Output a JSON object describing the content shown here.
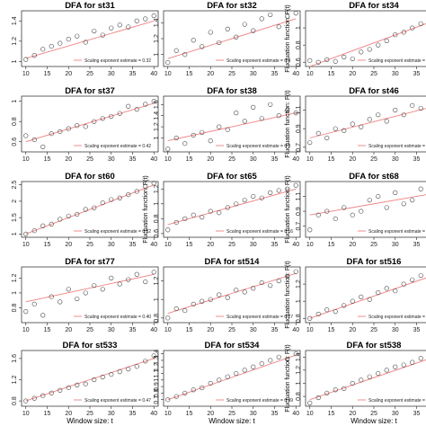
{
  "figure": {
    "title_prefix": "DFA for",
    "legend_text": "Scaling exponent estimate = ",
    "xlabel": "Window size: t",
    "ylabel": "Fluctuation function: F(t)",
    "colors": {
      "fit_line": "#f08080",
      "points": "#444444",
      "axis": "#222222"
    }
  },
  "chart_data": [
    {
      "type": "scatter",
      "title": "DFA for st31",
      "panel": {
        "row": 0,
        "col": 0
      },
      "xlabel": "",
      "ylabel": "",
      "xlim": [
        9,
        41
      ],
      "ylim": [
        0.95,
        1.5
      ],
      "xticks": [
        10,
        15,
        20,
        25,
        30,
        35,
        40
      ],
      "yticks": [
        1.0,
        1.2,
        1.4
      ],
      "x": [
        10,
        12,
        14,
        16,
        18,
        20,
        22,
        24,
        26,
        28,
        30,
        32,
        34,
        36,
        38,
        40
      ],
      "y": [
        1.02,
        1.06,
        1.12,
        1.15,
        1.18,
        1.22,
        1.25,
        1.19,
        1.3,
        1.26,
        1.33,
        1.36,
        1.34,
        1.4,
        1.42,
        1.45
      ],
      "fit": {
        "x": [
          10,
          40
        ],
        "y": [
          1.03,
          1.4
        ]
      },
      "legend_value": "0.32"
    },
    {
      "type": "scatter",
      "title": "DFA for st32",
      "panel": {
        "row": 0,
        "col": 1
      },
      "xlabel": "",
      "ylabel": "",
      "xlim": [
        9,
        41
      ],
      "ylim": [
        0.85,
        1.55
      ],
      "xticks": [
        10,
        15,
        20,
        25,
        30,
        35,
        40
      ],
      "yticks": [
        1.0,
        1.2,
        1.4
      ],
      "x": [
        10,
        12,
        14,
        16,
        18,
        20,
        22,
        24,
        26,
        28,
        30,
        32,
        34,
        36,
        38,
        40
      ],
      "y": [
        0.9,
        1.05,
        1.0,
        1.18,
        1.1,
        1.28,
        1.15,
        1.32,
        1.22,
        1.38,
        1.3,
        1.45,
        1.5,
        1.35,
        1.48,
        1.52
      ],
      "fit": {
        "x": [
          10,
          40
        ],
        "y": [
          0.95,
          1.45
        ]
      },
      "legend_value": "0.4"
    },
    {
      "type": "scatter",
      "title": "DFA for st34",
      "panel": {
        "row": 0,
        "col": 2
      },
      "xlabel": "",
      "ylabel": "Fluctuation function: F(t)",
      "xlim": [
        9,
        41
      ],
      "ylim": [
        0.55,
        1.2
      ],
      "xticks": [
        10,
        15,
        20,
        25,
        30,
        35,
        40
      ],
      "yticks": [
        0.6,
        0.8,
        1.0
      ],
      "x": [
        10,
        12,
        14,
        16,
        18,
        20,
        22,
        24,
        26,
        28,
        30,
        32,
        34,
        36,
        38,
        40
      ],
      "y": [
        0.62,
        0.6,
        0.63,
        0.61,
        0.66,
        0.64,
        0.72,
        0.75,
        0.8,
        0.85,
        0.92,
        0.95,
        1.0,
        1.05,
        1.08,
        1.12
      ],
      "fit": {
        "x": [
          10,
          40
        ],
        "y": [
          0.55,
          1.1
        ]
      },
      "legend_value": "0.4"
    },
    {
      "type": "scatter",
      "title": "DFA for st37",
      "panel": {
        "row": 1,
        "col": 0
      },
      "xlabel": "",
      "ylabel": "",
      "xlim": [
        9,
        41
      ],
      "ylim": [
        0.5,
        1.05
      ],
      "xticks": [
        10,
        15,
        20,
        25,
        30,
        35,
        40
      ],
      "yticks": [
        0.6,
        0.8,
        1.0
      ],
      "x": [
        10,
        12,
        14,
        16,
        18,
        20,
        22,
        24,
        26,
        28,
        30,
        32,
        34,
        36,
        38,
        40
      ],
      "y": [
        0.66,
        0.62,
        0.55,
        0.68,
        0.7,
        0.73,
        0.76,
        0.75,
        0.8,
        0.83,
        0.85,
        0.88,
        0.95,
        0.92,
        0.97,
        1.0
      ],
      "fit": {
        "x": [
          10,
          40
        ],
        "y": [
          0.6,
          0.98
        ]
      },
      "legend_value": "0.42"
    },
    {
      "type": "scatter",
      "title": "DFA for st38",
      "panel": {
        "row": 1,
        "col": 1
      },
      "xlabel": "",
      "ylabel": "",
      "xlim": [
        9,
        41
      ],
      "ylim": [
        0.75,
        1.75
      ],
      "xticks": [
        10,
        15,
        20,
        25,
        30,
        35,
        40
      ],
      "yticks": [
        1.0,
        1.2,
        1.4,
        1.6
      ],
      "x": [
        10,
        12,
        14,
        16,
        18,
        20,
        22,
        24,
        26,
        28,
        30,
        32,
        34,
        36,
        38,
        40
      ],
      "y": [
        0.8,
        1.0,
        0.9,
        1.05,
        1.1,
        0.95,
        1.2,
        1.15,
        1.45,
        1.3,
        1.55,
        1.35,
        1.6,
        1.4,
        1.5,
        1.45
      ],
      "fit": {
        "x": [
          10,
          40
        ],
        "y": [
          0.95,
          1.45
        ]
      },
      "legend_value": "0.3"
    },
    {
      "type": "scatter",
      "title": "DFA for st46",
      "panel": {
        "row": 1,
        "col": 2
      },
      "xlabel": "",
      "ylabel": "Fluctuation function: F(t)",
      "xlim": [
        9,
        41
      ],
      "ylim": [
        0.65,
        1.25
      ],
      "xticks": [
        10,
        15,
        20,
        25,
        30,
        35,
        40
      ],
      "yticks": [
        0.7,
        0.9,
        1.1
      ],
      "x": [
        10,
        12,
        14,
        16,
        18,
        20,
        22,
        24,
        26,
        28,
        30,
        32,
        34,
        36,
        38,
        40
      ],
      "y": [
        0.75,
        0.85,
        0.8,
        0.9,
        0.88,
        0.95,
        0.92,
        1.0,
        1.05,
        0.98,
        1.1,
        1.05,
        1.15,
        1.12,
        1.18,
        1.2
      ],
      "fit": {
        "x": [
          10,
          40
        ],
        "y": [
          0.8,
          1.15
        ]
      },
      "legend_value": "0.2"
    },
    {
      "type": "scatter",
      "title": "DFA for st60",
      "panel": {
        "row": 2,
        "col": 0
      },
      "xlabel": "",
      "ylabel": "",
      "xlim": [
        9,
        41
      ],
      "ylim": [
        0.9,
        2.6
      ],
      "xticks": [
        10,
        15,
        20,
        25,
        30,
        35,
        40
      ],
      "yticks": [
        1.0,
        1.5,
        2.0,
        2.5
      ],
      "x": [
        10,
        12,
        14,
        16,
        18,
        20,
        22,
        24,
        26,
        28,
        30,
        32,
        34,
        36,
        38,
        40
      ],
      "y": [
        1.0,
        1.1,
        1.25,
        1.3,
        1.45,
        1.55,
        1.6,
        1.75,
        1.8,
        1.95,
        2.05,
        2.1,
        2.2,
        2.3,
        2.45,
        2.55
      ],
      "fit": {
        "x": [
          10,
          40
        ],
        "y": [
          1.0,
          2.5
        ]
      },
      "legend_value": "0.82"
    },
    {
      "type": "scatter",
      "title": "DFA for st65",
      "panel": {
        "row": 2,
        "col": 1
      },
      "xlabel": "",
      "ylabel": "Fluctuation function: F(t)",
      "xlim": [
        9,
        41
      ],
      "ylim": [
        0.55,
        1.3
      ],
      "xticks": [
        10,
        15,
        20,
        25,
        30,
        35,
        40
      ],
      "yticks": [
        0.6,
        0.8,
        1.0,
        1.2
      ],
      "x": [
        10,
        12,
        14,
        16,
        18,
        20,
        22,
        24,
        26,
        28,
        30,
        32,
        34,
        36,
        38,
        40
      ],
      "y": [
        0.65,
        0.75,
        0.8,
        0.85,
        0.82,
        0.9,
        0.88,
        0.95,
        1.0,
        1.05,
        1.1,
        1.08,
        1.15,
        1.18,
        1.2,
        1.25
      ],
      "fit": {
        "x": [
          10,
          40
        ],
        "y": [
          0.72,
          1.2
        ]
      },
      "legend_value": "0.16"
    },
    {
      "type": "scatter",
      "title": "DFA for st68",
      "panel": {
        "row": 2,
        "col": 2
      },
      "xlabel": "",
      "ylabel": "Fluctuation function: F(t)",
      "xlim": [
        9,
        41
      ],
      "ylim": [
        0.55,
        1.3
      ],
      "xticks": [
        10,
        15,
        20,
        25,
        30,
        35,
        40
      ],
      "yticks": [
        0.7,
        0.9,
        1.1
      ],
      "x": [
        10,
        12,
        14,
        16,
        18,
        20,
        22,
        24,
        26,
        28,
        30,
        32,
        34,
        36,
        38,
        40
      ],
      "y": [
        0.65,
        0.85,
        0.9,
        0.8,
        0.95,
        0.85,
        0.9,
        1.05,
        1.1,
        0.95,
        1.15,
        1.0,
        1.05,
        1.2,
        1.1,
        1.18
      ],
      "fit": {
        "x": [
          10,
          40
        ],
        "y": [
          0.85,
          1.15
        ]
      },
      "legend_value": ""
    },
    {
      "type": "scatter",
      "title": "DFA for st77",
      "panel": {
        "row": 3,
        "col": 0
      },
      "xlabel": "",
      "ylabel": "",
      "xlim": [
        9,
        41
      ],
      "ylim": [
        0.6,
        1.35
      ],
      "xticks": [
        10,
        15,
        20,
        25,
        30,
        35,
        40
      ],
      "yticks": [
        0.8,
        1.0,
        1.2
      ],
      "x": [
        10,
        12,
        14,
        16,
        18,
        20,
        22,
        24,
        26,
        28,
        30,
        32,
        34,
        36,
        38,
        40
      ],
      "y": [
        0.75,
        0.85,
        0.7,
        0.95,
        0.88,
        1.05,
        0.92,
        1.0,
        1.1,
        1.05,
        1.2,
        1.12,
        1.18,
        1.25,
        1.15,
        1.28
      ],
      "fit": {
        "x": [
          10,
          40
        ],
        "y": [
          0.88,
          1.25
        ]
      },
      "legend_value": "0.40"
    },
    {
      "type": "scatter",
      "title": "DFA for st514",
      "panel": {
        "row": 3,
        "col": 1
      },
      "xlabel": "",
      "ylabel": "",
      "xlim": [
        9,
        41
      ],
      "ylim": [
        0.75,
        1.35
      ],
      "xticks": [
        10,
        15,
        20,
        25,
        30,
        35,
        40
      ],
      "yticks": [
        0.8,
        1.0,
        1.2
      ],
      "x": [
        10,
        12,
        14,
        16,
        18,
        20,
        22,
        24,
        26,
        28,
        30,
        32,
        34,
        36,
        38,
        40
      ],
      "y": [
        0.8,
        0.9,
        0.88,
        0.95,
        0.98,
        1.0,
        1.05,
        1.02,
        1.1,
        1.08,
        1.12,
        1.18,
        1.15,
        1.2,
        1.25,
        1.3
      ],
      "fit": {
        "x": [
          10,
          40
        ],
        "y": [
          0.85,
          1.28
        ]
      },
      "legend_value": "0.27"
    },
    {
      "type": "scatter",
      "title": "DFA for st516",
      "panel": {
        "row": 3,
        "col": 2
      },
      "xlabel": "",
      "ylabel": "Fluctuation function: F(t)",
      "xlim": [
        9,
        41
      ],
      "ylim": [
        0.75,
        1.4
      ],
      "xticks": [
        10,
        15,
        20,
        25,
        30,
        35,
        40
      ],
      "yticks": [
        0.8,
        1.0,
        1.2
      ],
      "x": [
        10,
        12,
        14,
        16,
        18,
        20,
        22,
        24,
        26,
        28,
        30,
        32,
        34,
        36,
        38,
        40
      ],
      "y": [
        0.8,
        0.85,
        0.9,
        0.88,
        0.95,
        1.0,
        1.05,
        1.02,
        1.1,
        1.15,
        1.12,
        1.2,
        1.25,
        1.3,
        1.28,
        1.35
      ],
      "fit": {
        "x": [
          10,
          40
        ],
        "y": [
          0.8,
          1.32
        ]
      },
      "legend_value": ""
    },
    {
      "type": "scatter",
      "title": "DFA for st533",
      "panel": {
        "row": 4,
        "col": 0
      },
      "xlabel": "Window size: t",
      "ylabel": "",
      "xlim": [
        9,
        41
      ],
      "ylim": [
        0.7,
        1.75
      ],
      "xticks": [
        10,
        15,
        20,
        25,
        30,
        35,
        40
      ],
      "yticks": [
        0.8,
        1.2,
        1.6
      ],
      "x": [
        10,
        12,
        14,
        16,
        18,
        20,
        22,
        24,
        26,
        28,
        30,
        32,
        34,
        36,
        38,
        40
      ],
      "y": [
        0.8,
        0.85,
        0.9,
        0.95,
        1.0,
        1.05,
        1.1,
        1.12,
        1.2,
        1.25,
        1.3,
        1.35,
        1.4,
        1.45,
        1.55,
        1.65
      ],
      "fit": {
        "x": [
          10,
          40
        ],
        "y": [
          0.8,
          1.6
        ]
      },
      "legend_value": "0.47"
    },
    {
      "type": "scatter",
      "title": "DFA for st534",
      "panel": {
        "row": 4,
        "col": 1
      },
      "xlabel": "Window size: t",
      "ylabel": "",
      "xlim": [
        9,
        41
      ],
      "ylim": [
        0.6,
        1.45
      ],
      "xticks": [
        10,
        15,
        20,
        25,
        30,
        35,
        40
      ],
      "yticks": [
        0.7,
        0.8,
        0.9,
        1.0,
        1.1,
        1.2,
        1.3,
        1.4
      ],
      "x": [
        10,
        12,
        14,
        16,
        18,
        20,
        22,
        24,
        26,
        28,
        30,
        32,
        34,
        36,
        38,
        40
      ],
      "y": [
        0.7,
        0.75,
        0.8,
        0.85,
        0.88,
        0.95,
        1.0,
        1.05,
        1.1,
        1.15,
        1.2,
        1.25,
        1.3,
        1.35,
        1.32,
        1.4
      ],
      "fit": {
        "x": [
          10,
          40
        ],
        "y": [
          0.7,
          1.38
        ]
      },
      "legend_value": "0.49"
    },
    {
      "type": "scatter",
      "title": "DFA for st538",
      "panel": {
        "row": 4,
        "col": 2
      },
      "xlabel": "Window size: t",
      "ylabel": "Fluctuation function: F(t)",
      "xlim": [
        9,
        41
      ],
      "ylim": [
        0.65,
        1.5
      ],
      "xticks": [
        10,
        15,
        20,
        25,
        30,
        35,
        40
      ],
      "yticks": [
        0.8,
        1.0,
        1.2,
        1.4
      ],
      "x": [
        10,
        12,
        14,
        16,
        18,
        20,
        22,
        24,
        26,
        28,
        30,
        32,
        34,
        36,
        38,
        40
      ],
      "y": [
        0.7,
        0.78,
        0.85,
        0.9,
        0.92,
        1.0,
        1.05,
        1.1,
        1.15,
        1.2,
        1.25,
        1.28,
        1.32,
        1.38,
        1.42,
        1.45
      ],
      "fit": {
        "x": [
          10,
          40
        ],
        "y": [
          0.75,
          1.42
        ]
      },
      "legend_value": ""
    }
  ]
}
